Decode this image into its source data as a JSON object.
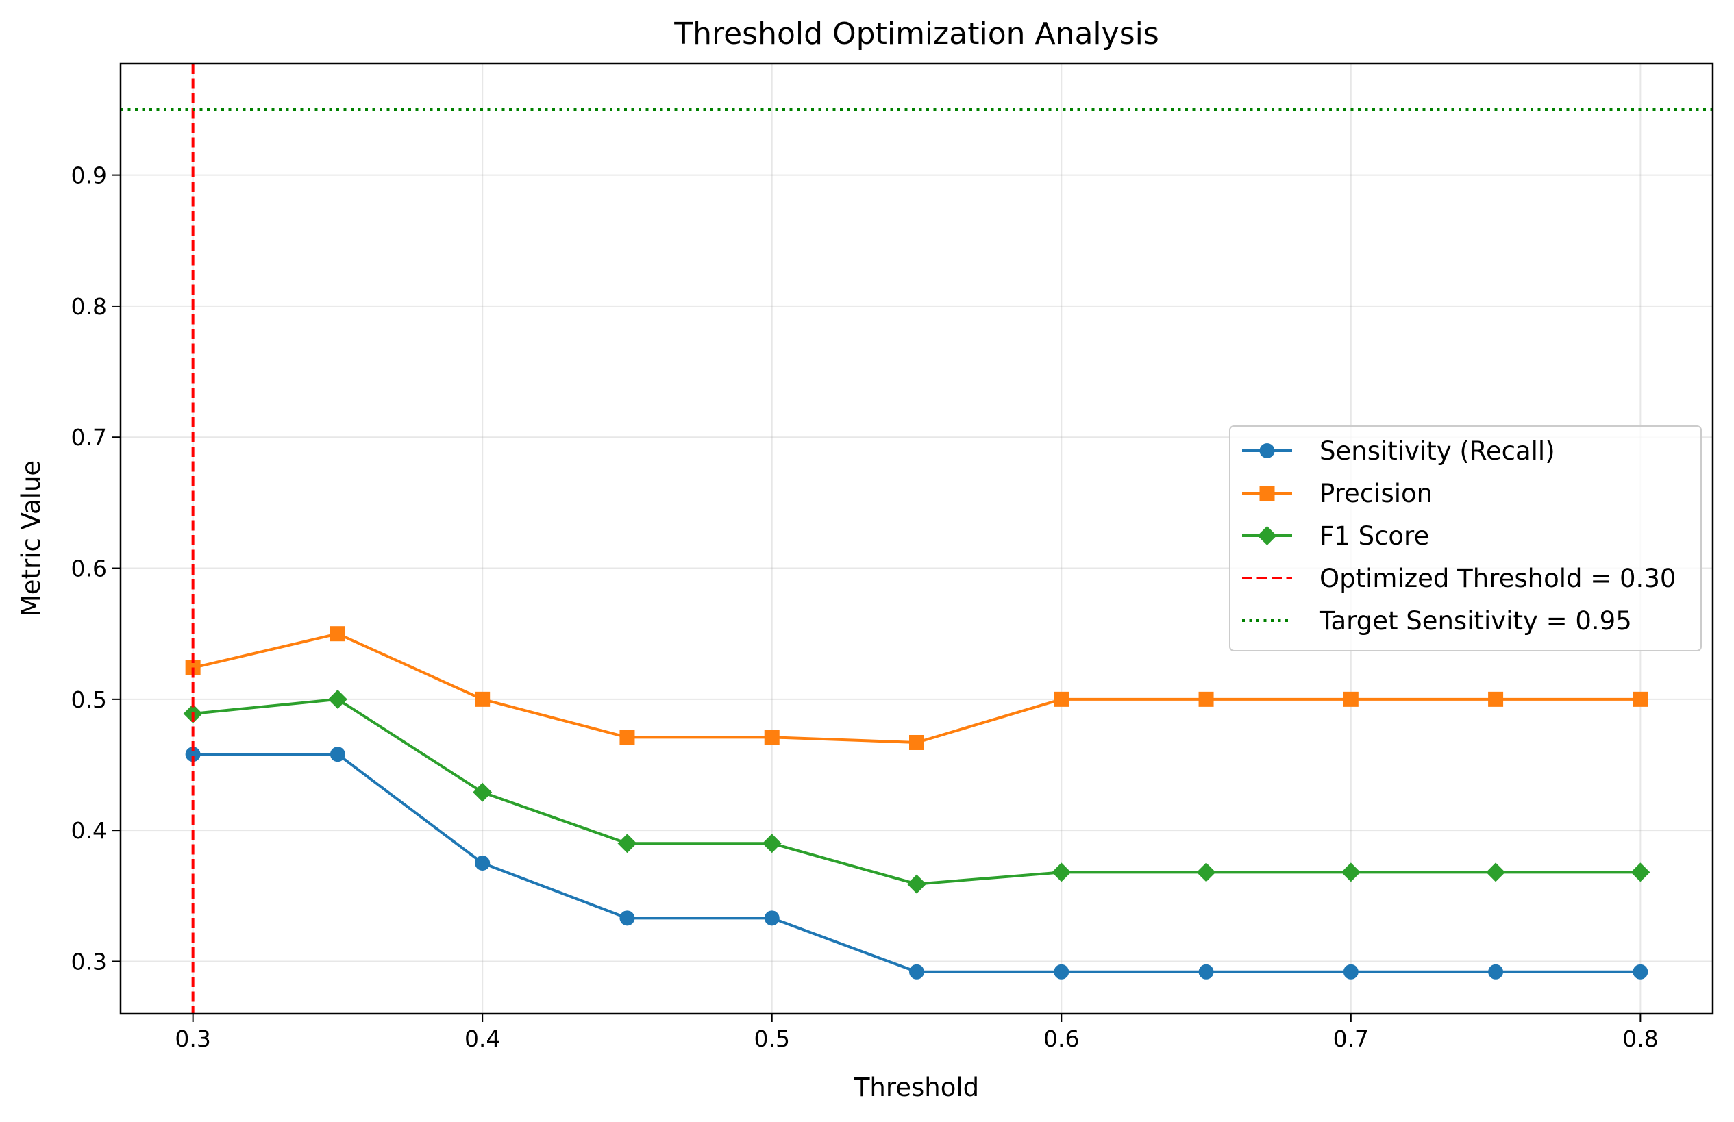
{
  "chart_data": {
    "type": "line",
    "title": "Threshold Optimization Analysis",
    "xlabel": "Threshold",
    "ylabel": "Metric Value",
    "xlim": [
      0.275,
      0.825
    ],
    "ylim": [
      0.26,
      0.985
    ],
    "xticks": [
      "0.3",
      "0.4",
      "0.5",
      "0.6",
      "0.7",
      "0.8"
    ],
    "yticks": [
      "0.3",
      "0.4",
      "0.5",
      "0.6",
      "0.7",
      "0.8",
      "0.9"
    ],
    "grid": true,
    "legend_position": "center-right",
    "x": [
      0.3,
      0.35,
      0.4,
      0.45,
      0.5,
      0.55,
      0.6,
      0.65,
      0.7,
      0.75,
      0.8
    ],
    "series": [
      {
        "name": "Sensitivity (Recall)",
        "color": "#1f77b4",
        "marker": "circle",
        "values": [
          0.458,
          0.458,
          0.375,
          0.333,
          0.333,
          0.292,
          0.292,
          0.292,
          0.292,
          0.292,
          0.292
        ]
      },
      {
        "name": "Precision",
        "color": "#ff7f0e",
        "marker": "square",
        "values": [
          0.524,
          0.55,
          0.5,
          0.471,
          0.471,
          0.467,
          0.5,
          0.5,
          0.5,
          0.5,
          0.5
        ]
      },
      {
        "name": "F1 Score",
        "color": "#2ca02c",
        "marker": "diamond",
        "values": [
          0.489,
          0.5,
          0.429,
          0.39,
          0.39,
          0.359,
          0.368,
          0.368,
          0.368,
          0.368,
          0.368
        ]
      }
    ],
    "reference_lines": [
      {
        "name": "Optimized Threshold = 0.30",
        "orientation": "vertical",
        "value": 0.3,
        "color": "#ff0000",
        "style": "dashed"
      },
      {
        "name": "Target Sensitivity = 0.95",
        "orientation": "horizontal",
        "value": 0.95,
        "color": "#008000",
        "style": "dotted"
      }
    ]
  }
}
